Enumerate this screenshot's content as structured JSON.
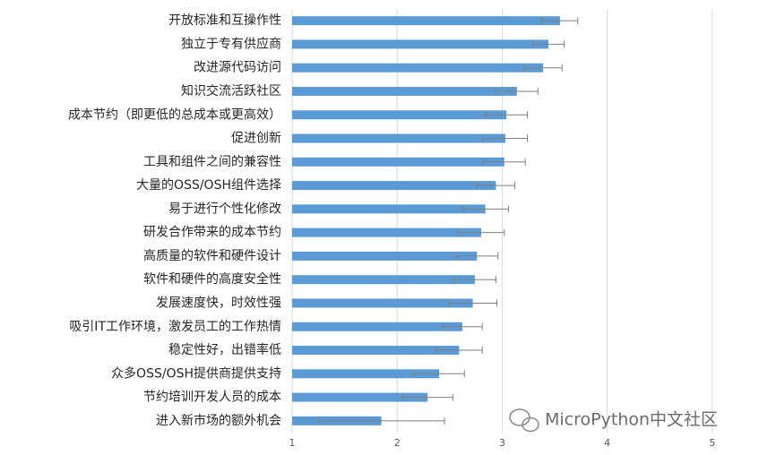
{
  "chart_data": {
    "type": "bar",
    "orientation": "horizontal",
    "categories": [
      "开放标准和互操作性",
      "独立于专有供应商",
      "改进源代码访问",
      "知识交流活跃社区",
      "成本节约（即更低的总成本或更高效）",
      "促进创新",
      "工具和组件之间的兼容性",
      "大量的OSS/OSH组件选择",
      "易于进行个性化修改",
      "研发合作带来的成本节约",
      "高质量的软件和硬件设计",
      "软件和硬件的高度安全性",
      "发展速度快，时效性强",
      "吸引IT工作环境，激发员工的工作热情",
      "稳定性好，出错率低",
      "众多OSS/OSH提供商提供支持",
      "节约培训开发人员的成本",
      "进入新市场的额外机会"
    ],
    "values": [
      3.55,
      3.44,
      3.39,
      3.14,
      3.04,
      3.03,
      3.02,
      2.94,
      2.84,
      2.8,
      2.76,
      2.74,
      2.72,
      2.62,
      2.59,
      2.4,
      2.29,
      1.85
    ],
    "errors": [
      0.17,
      0.15,
      0.18,
      0.2,
      0.2,
      0.21,
      0.2,
      0.18,
      0.22,
      0.22,
      0.2,
      0.2,
      0.23,
      0.19,
      0.22,
      0.24,
      0.24,
      0.6
    ],
    "color": "#5b9bd5",
    "error_color": "#7f7f7f",
    "xlim": [
      1,
      5.3
    ],
    "xticks": [
      1,
      2,
      3,
      4,
      5
    ],
    "grid": true,
    "watermark": "MicroPython中文社区"
  }
}
